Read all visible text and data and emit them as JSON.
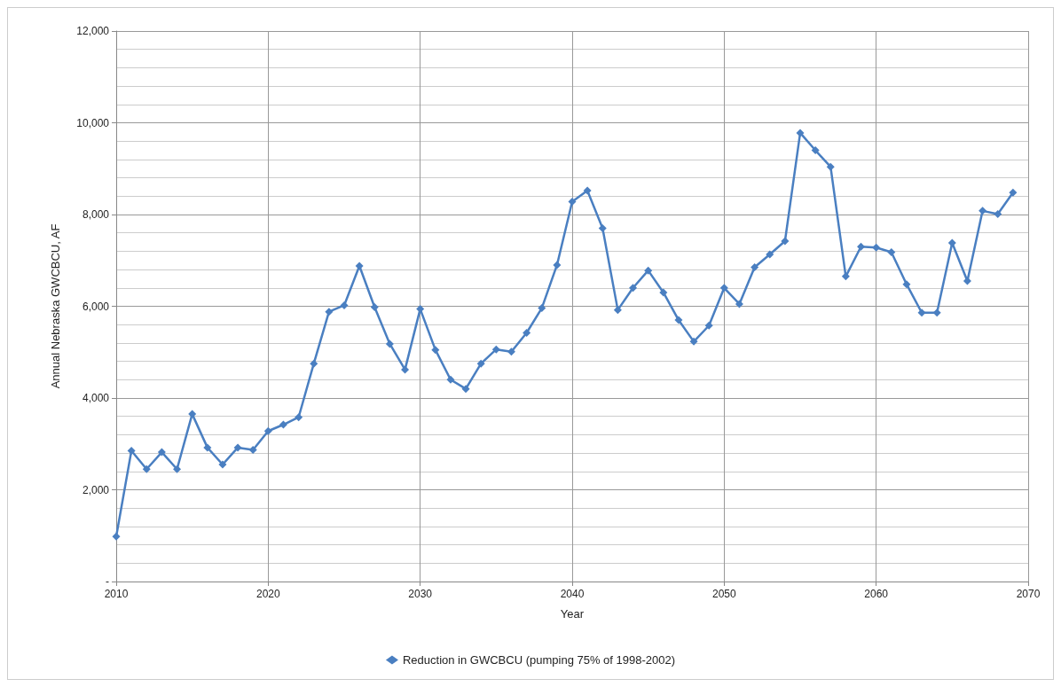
{
  "chart_data": {
    "type": "line",
    "xlabel": "Year",
    "ylabel": "Annual Nebraska GWCBCU, AF",
    "x": [
      2010,
      2011,
      2012,
      2013,
      2014,
      2015,
      2016,
      2017,
      2018,
      2019,
      2020,
      2021,
      2022,
      2023,
      2024,
      2025,
      2026,
      2027,
      2028,
      2029,
      2030,
      2031,
      2032,
      2033,
      2034,
      2035,
      2036,
      2037,
      2038,
      2039,
      2040,
      2041,
      2042,
      2043,
      2044,
      2045,
      2046,
      2047,
      2048,
      2049,
      2050,
      2051,
      2052,
      2053,
      2054,
      2055,
      2056,
      2057,
      2058,
      2059,
      2060,
      2061,
      2062,
      2063,
      2064,
      2065,
      2066,
      2067,
      2068,
      2069
    ],
    "series": [
      {
        "name": "Reduction in GWCBCU (pumping 75% of 1998-2002)",
        "color": "#4a7fc1",
        "values": [
          980,
          2850,
          2450,
          2820,
          2450,
          3650,
          2920,
          2550,
          2920,
          2870,
          3280,
          3420,
          3580,
          4750,
          5880,
          6020,
          6880,
          5980,
          5180,
          4620,
          5940,
          5050,
          4400,
          4200,
          4750,
          5060,
          5010,
          5420,
          5960,
          6900,
          8280,
          8520,
          7700,
          5920,
          6400,
          6780,
          6300,
          5700,
          5230,
          5580,
          6400,
          6050,
          6850,
          7130,
          7420,
          9780,
          9400,
          9040,
          6650,
          7300,
          7280,
          7180,
          6480,
          5860,
          5860,
          7380,
          6550,
          8080,
          8010,
          8480
        ]
      }
    ],
    "xlim": [
      2010,
      2070
    ],
    "xticks": [
      2010,
      2020,
      2030,
      2040,
      2050,
      2060,
      2070
    ],
    "ylim": [
      0,
      12000
    ],
    "yticks": [
      {
        "value": 0,
        "label": "-"
      },
      {
        "value": 2000,
        "label": "2,000"
      },
      {
        "value": 4000,
        "label": "4,000"
      },
      {
        "value": 6000,
        "label": "6,000"
      },
      {
        "value": 8000,
        "label": "8,000"
      },
      {
        "value": 10000,
        "label": "10,000"
      },
      {
        "value": 12000,
        "label": "12,000"
      }
    ],
    "grid": true,
    "legend": "bottom",
    "marker": "diamond",
    "line_style": "solid"
  }
}
